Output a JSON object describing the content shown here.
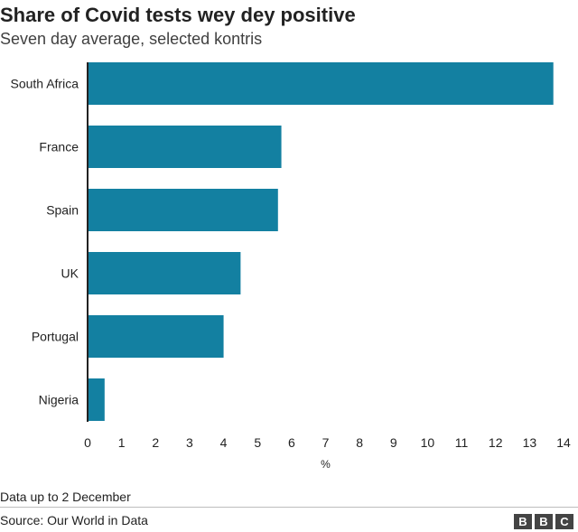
{
  "chart_data": {
    "type": "bar",
    "orientation": "horizontal",
    "title": "Share of Covid tests wey dey positive",
    "subtitle": "Seven day average, selected kontris",
    "categories": [
      "South Africa",
      "France",
      "Spain",
      "UK",
      "Portugal",
      "Nigeria"
    ],
    "values": [
      13.7,
      5.7,
      5.6,
      4.5,
      4.0,
      0.5
    ],
    "xlabel": "%",
    "xlim": [
      0,
      14
    ],
    "xticks": [
      "0",
      "1",
      "2",
      "3",
      "4",
      "5",
      "6",
      "7",
      "8",
      "9",
      "10",
      "11",
      "12",
      "13",
      "14"
    ],
    "grid": false,
    "bar_color": "#1380A1"
  },
  "footer": {
    "note": "Data up to 2 December",
    "source": "Source: Our World in Data",
    "logo_letters": [
      "B",
      "B",
      "C"
    ]
  }
}
